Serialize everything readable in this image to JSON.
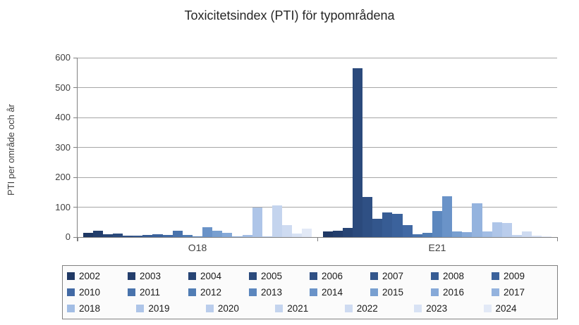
{
  "chart_data": {
    "type": "bar",
    "title": "Toxicitetsindex (PTI) för typområdena",
    "ylabel": "PTI per område och år",
    "xlabel": "",
    "ylim": [
      0,
      600
    ],
    "yticks": [
      0,
      100,
      200,
      300,
      400,
      500,
      600
    ],
    "grid": true,
    "legend_position": "bottom",
    "categories": [
      "O18",
      "E21"
    ],
    "series": [
      {
        "name": "2002",
        "color": "#1F3864",
        "values": [
          15,
          20
        ]
      },
      {
        "name": "2003",
        "color": "#233E6C",
        "values": [
          22,
          21
        ]
      },
      {
        "name": "2004",
        "color": "#274474",
        "values": [
          9,
          30
        ]
      },
      {
        "name": "2005",
        "color": "#2B4A7C",
        "values": [
          12,
          565
        ]
      },
      {
        "name": "2006",
        "color": "#2F5084",
        "values": [
          5,
          135
        ]
      },
      {
        "name": "2007",
        "color": "#33568C",
        "values": [
          5,
          61
        ]
      },
      {
        "name": "2008",
        "color": "#375C94",
        "values": [
          8,
          83
        ]
      },
      {
        "name": "2009",
        "color": "#3B629C",
        "values": [
          10,
          77
        ]
      },
      {
        "name": "2010",
        "color": "#4169A4",
        "values": [
          8,
          41
        ]
      },
      {
        "name": "2011",
        "color": "#4973AC",
        "values": [
          21,
          10
        ]
      },
      {
        "name": "2012",
        "color": "#517DB4",
        "values": [
          7,
          15
        ]
      },
      {
        "name": "2013",
        "color": "#5C87BE",
        "values": [
          3,
          88
        ]
      },
      {
        "name": "2014",
        "color": "#6A93C8",
        "values": [
          32,
          136
        ]
      },
      {
        "name": "2015",
        "color": "#789FD0",
        "values": [
          21,
          20
        ]
      },
      {
        "name": "2016",
        "color": "#86A9D8",
        "values": [
          14,
          17
        ]
      },
      {
        "name": "2017",
        "color": "#94B3DE",
        "values": [
          3,
          114
        ]
      },
      {
        "name": "2018",
        "color": "#A2BDE4",
        "values": [
          8,
          20
        ]
      },
      {
        "name": "2019",
        "color": "#AEC5E8",
        "values": [
          99,
          49
        ]
      },
      {
        "name": "2020",
        "color": "#BACDEC",
        "values": [
          2,
          48
        ]
      },
      {
        "name": "2021",
        "color": "#C4D4EE",
        "values": [
          107,
          8
        ]
      },
      {
        "name": "2022",
        "color": "#CEDBF1",
        "values": [
          40,
          20
        ]
      },
      {
        "name": "2023",
        "color": "#D8E2F4",
        "values": [
          11,
          5
        ]
      },
      {
        "name": "2024",
        "color": "#E2E9F6",
        "values": [
          28,
          2
        ]
      }
    ],
    "legend_rows": [
      8,
      8,
      7
    ]
  },
  "colors": {
    "gridline": "#a6a6a6",
    "axis": "#808080",
    "text": "#3f3f3f",
    "legend_border": "#808080",
    "legend_bg": "#fbfbfb"
  }
}
